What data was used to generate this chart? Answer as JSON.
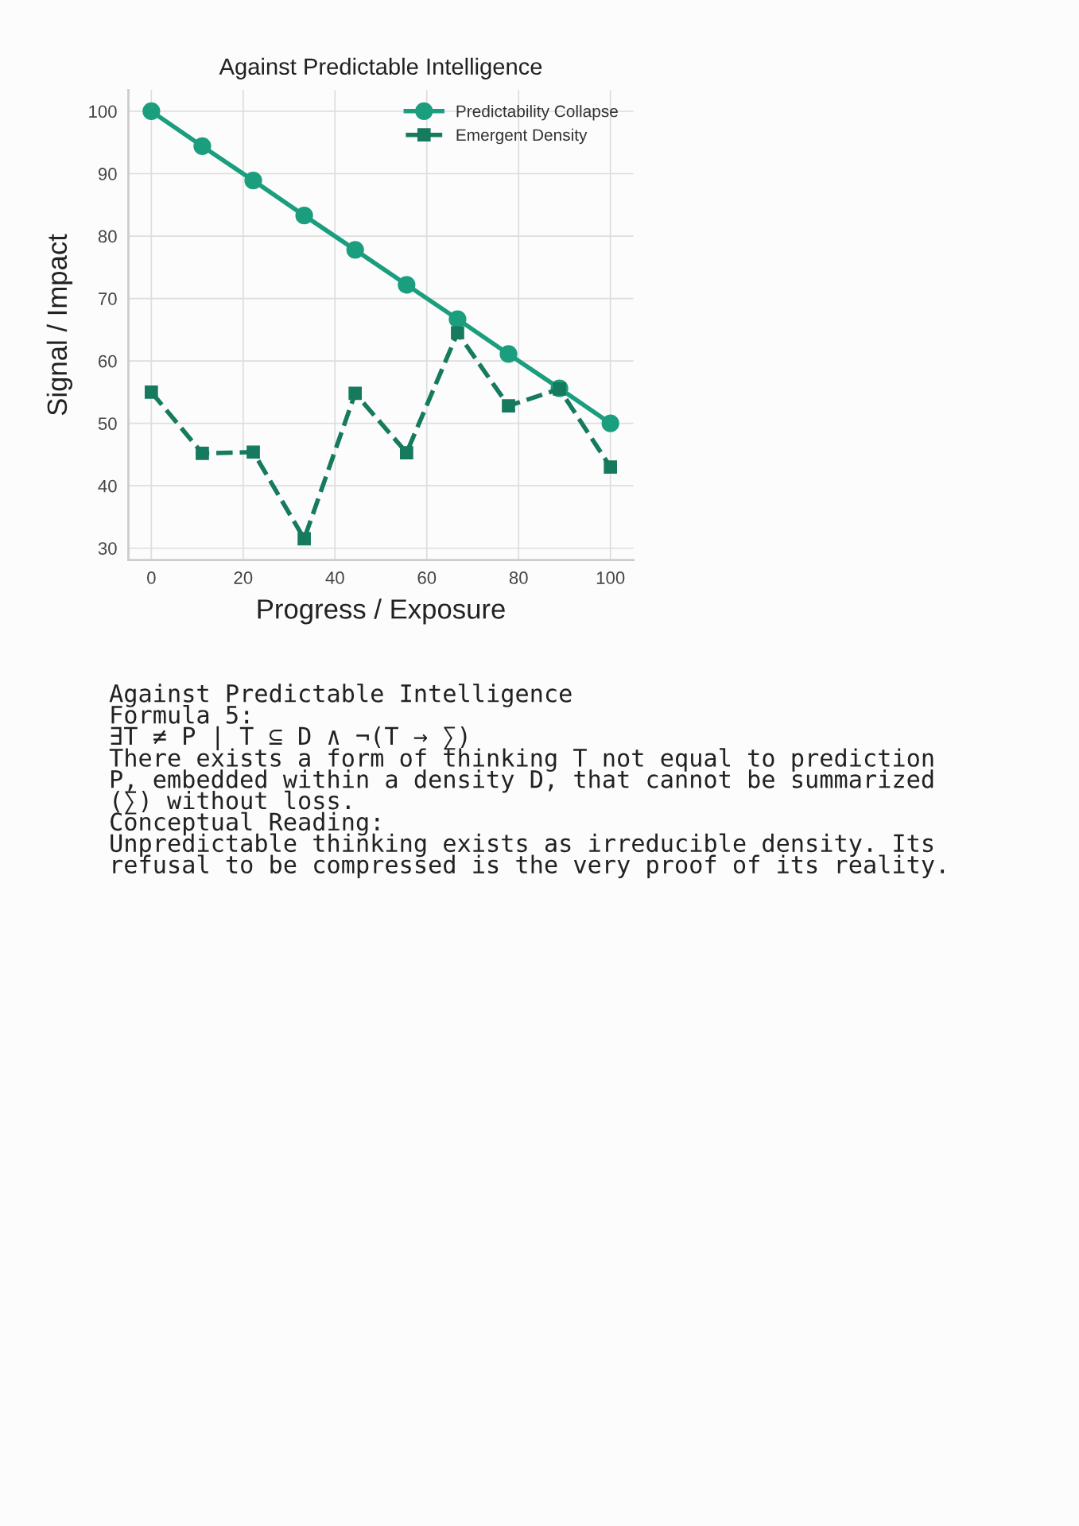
{
  "chart_data": {
    "type": "line",
    "title": "Against Predictable Intelligence",
    "xlabel": "Progress / Exposure",
    "ylabel": "Signal / Impact",
    "x": [
      0,
      11.1,
      22.2,
      33.3,
      44.4,
      55.6,
      66.7,
      77.8,
      88.9,
      100
    ],
    "series": [
      {
        "name": "Predictability Collapse",
        "color": "#1b9e7e",
        "values": [
          100,
          94.4,
          88.9,
          83.3,
          77.8,
          72.2,
          66.7,
          61.1,
          55.6,
          50
        ],
        "marker": "circle",
        "line_style": "solid"
      },
      {
        "name": "Emergent Density",
        "color": "#167a5e",
        "values": [
          55,
          45.2,
          45.4,
          31.5,
          54.8,
          45.3,
          64.5,
          52.8,
          55.5,
          43
        ],
        "marker": "square",
        "line_style": "dashed"
      }
    ],
    "xlim": [
      -5,
      105
    ],
    "xticks": [
      0,
      20,
      40,
      60,
      80,
      100
    ],
    "ylim": [
      28.1,
      103.4
    ],
    "yticks": [
      30,
      40,
      50,
      60,
      70,
      80,
      90,
      100
    ],
    "grid": true,
    "legend": "top right",
    "annotations": [
      "Against Predictable Intelligence\nFormula 5:\n∃T ≠ P | T ⊆ D ∧ ¬(T → ∑)\nThere exists a form of thinking T not equal to prediction\nP, embedded within a density D, that cannot be summarized\n(∑) without loss.\nConceptual Reading:\nUnpredictable thinking exists as irreducible density. Its\nrefusal to be compressed is the very proof of its reality."
    ]
  }
}
